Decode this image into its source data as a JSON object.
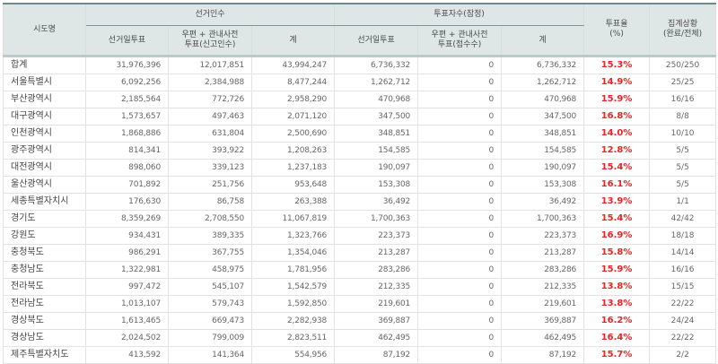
{
  "header": {
    "region": "시도명",
    "electorate_group": "선거인수",
    "electorate_cols": [
      "선거일투표",
      "우편 + 관내사전\n투표(신고인수)",
      "계"
    ],
    "voters_group": "투표자수(잠정)",
    "voters_cols": [
      "선거일투표",
      "우편 + 관내사전\n투표(접수수)",
      "계"
    ],
    "turnout": "투표율\n(%)",
    "status": "집계상황\n(완료/전체)"
  },
  "colors": {
    "header_bg": "#dfe6e6",
    "header_top_border": "#6d8a92",
    "turnout_text": "#ee2222",
    "grid": "#e2e2e2"
  },
  "rows": [
    {
      "region": "합계",
      "e_day": "31,976,396",
      "e_mail": "12,017,851",
      "e_total": "43,994,247",
      "v_day": "6,736,332",
      "v_mail": "0",
      "v_total": "6,736,332",
      "turnout": "15.3%",
      "status": "250/250"
    },
    {
      "region": "서울특별시",
      "e_day": "6,092,256",
      "e_mail": "2,384,988",
      "e_total": "8,477,244",
      "v_day": "1,262,712",
      "v_mail": "0",
      "v_total": "1,262,712",
      "turnout": "14.9%",
      "status": "25/25"
    },
    {
      "region": "부산광역시",
      "e_day": "2,185,564",
      "e_mail": "772,726",
      "e_total": "2,958,290",
      "v_day": "470,968",
      "v_mail": "0",
      "v_total": "470,968",
      "turnout": "15.9%",
      "status": "16/16"
    },
    {
      "region": "대구광역시",
      "e_day": "1,573,657",
      "e_mail": "497,463",
      "e_total": "2,071,120",
      "v_day": "347,500",
      "v_mail": "0",
      "v_total": "347,500",
      "turnout": "16.8%",
      "status": "8/8"
    },
    {
      "region": "인천광역시",
      "e_day": "1,868,886",
      "e_mail": "631,804",
      "e_total": "2,500,690",
      "v_day": "348,851",
      "v_mail": "0",
      "v_total": "348,851",
      "turnout": "14.0%",
      "status": "10/10"
    },
    {
      "region": "광주광역시",
      "e_day": "814,341",
      "e_mail": "393,922",
      "e_total": "1,208,263",
      "v_day": "154,585",
      "v_mail": "0",
      "v_total": "154,585",
      "turnout": "12.8%",
      "status": "5/5"
    },
    {
      "region": "대전광역시",
      "e_day": "898,060",
      "e_mail": "339,123",
      "e_total": "1,237,183",
      "v_day": "190,097",
      "v_mail": "0",
      "v_total": "190,097",
      "turnout": "15.4%",
      "status": "5/5"
    },
    {
      "region": "울산광역시",
      "e_day": "701,892",
      "e_mail": "251,756",
      "e_total": "953,648",
      "v_day": "153,308",
      "v_mail": "0",
      "v_total": "153,308",
      "turnout": "16.1%",
      "status": "5/5"
    },
    {
      "region": "세종특별자치시",
      "e_day": "176,630",
      "e_mail": "86,758",
      "e_total": "263,388",
      "v_day": "36,492",
      "v_mail": "0",
      "v_total": "36,492",
      "turnout": "13.9%",
      "status": "1/1"
    },
    {
      "region": "경기도",
      "e_day": "8,359,269",
      "e_mail": "2,708,550",
      "e_total": "11,067,819",
      "v_day": "1,700,363",
      "v_mail": "0",
      "v_total": "1,700,363",
      "turnout": "15.4%",
      "status": "42/42"
    },
    {
      "region": "강원도",
      "e_day": "934,431",
      "e_mail": "389,335",
      "e_total": "1,323,766",
      "v_day": "223,373",
      "v_mail": "0",
      "v_total": "223,373",
      "turnout": "16.9%",
      "status": "18/18"
    },
    {
      "region": "충청북도",
      "e_day": "986,291",
      "e_mail": "367,755",
      "e_total": "1,354,046",
      "v_day": "213,287",
      "v_mail": "0",
      "v_total": "213,287",
      "turnout": "15.8%",
      "status": "14/14"
    },
    {
      "region": "충청남도",
      "e_day": "1,322,981",
      "e_mail": "458,975",
      "e_total": "1,781,956",
      "v_day": "283,286",
      "v_mail": "0",
      "v_total": "283,286",
      "turnout": "15.9%",
      "status": "16/16"
    },
    {
      "region": "전라북도",
      "e_day": "997,472",
      "e_mail": "545,107",
      "e_total": "1,542,579",
      "v_day": "212,335",
      "v_mail": "0",
      "v_total": "212,335",
      "turnout": "13.8%",
      "status": "15/15"
    },
    {
      "region": "전라남도",
      "e_day": "1,013,107",
      "e_mail": "579,743",
      "e_total": "1,592,850",
      "v_day": "219,601",
      "v_mail": "0",
      "v_total": "219,601",
      "turnout": "13.8%",
      "status": "22/22"
    },
    {
      "region": "경상북도",
      "e_day": "1,613,465",
      "e_mail": "669,473",
      "e_total": "2,282,938",
      "v_day": "369,887",
      "v_mail": "0",
      "v_total": "369,887",
      "turnout": "16.2%",
      "status": "24/24"
    },
    {
      "region": "경상남도",
      "e_day": "2,024,502",
      "e_mail": "799,009",
      "e_total": "2,823,511",
      "v_day": "462,495",
      "v_mail": "0",
      "v_total": "462,495",
      "turnout": "16.4%",
      "status": "22/22"
    },
    {
      "region": "제주특별자치도",
      "e_day": "413,592",
      "e_mail": "141,364",
      "e_total": "554,956",
      "v_day": "87,192",
      "v_mail": "0",
      "v_total": "87,192",
      "turnout": "15.7%",
      "status": "2/2"
    }
  ]
}
